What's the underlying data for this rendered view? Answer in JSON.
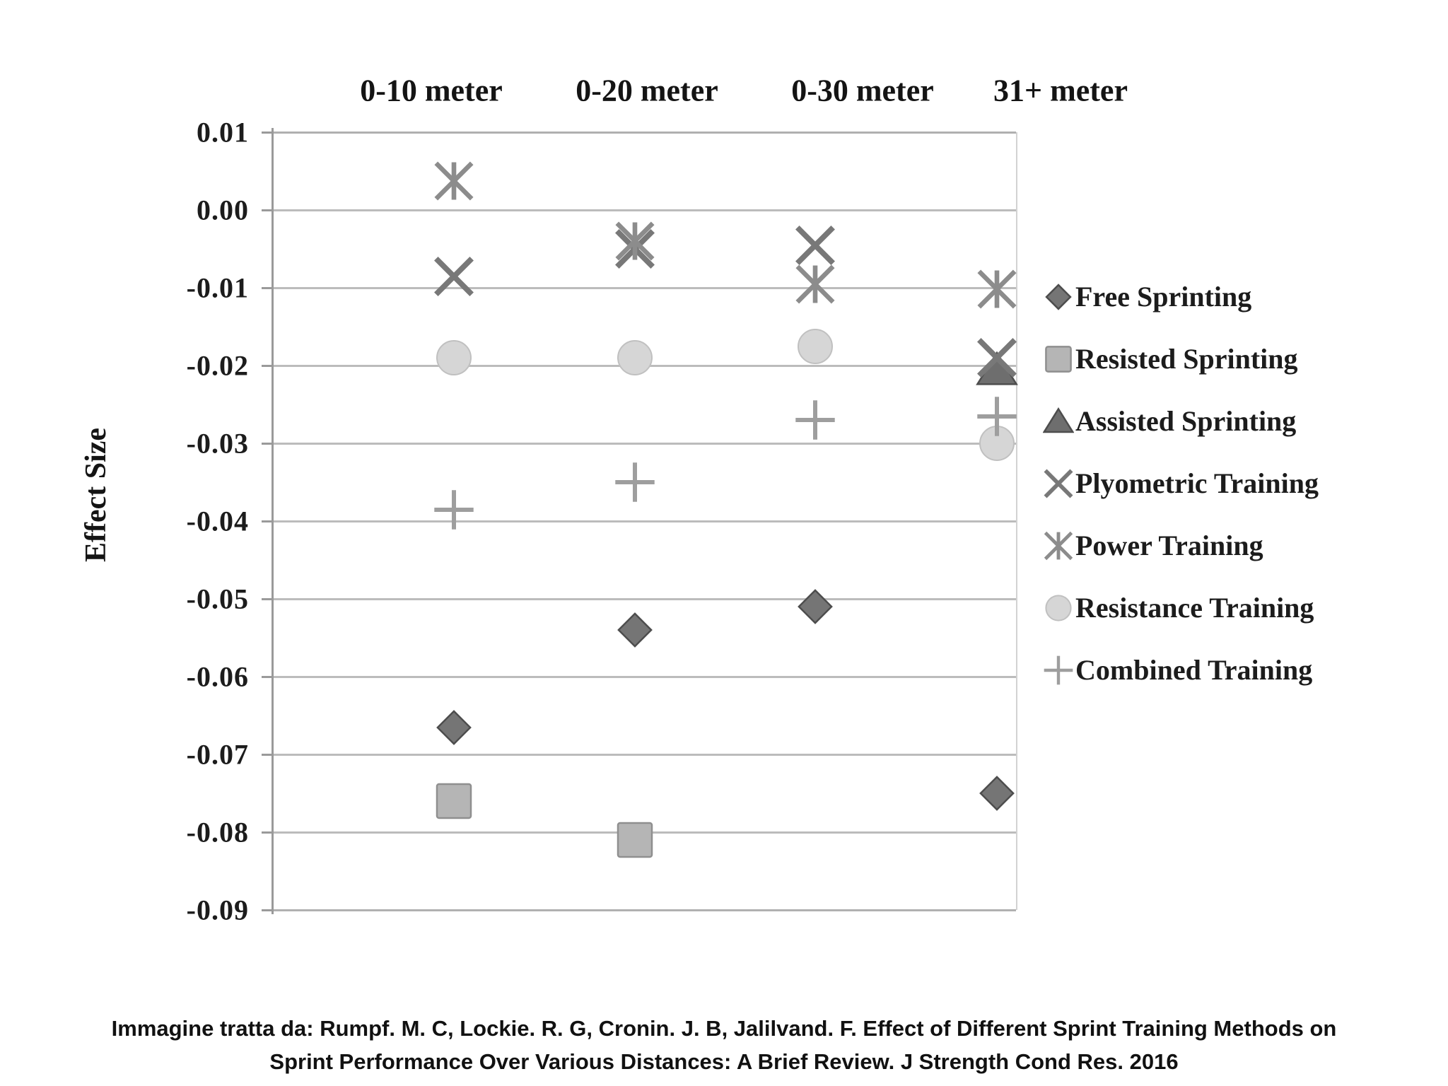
{
  "chart_data": {
    "type": "scatter",
    "title": "",
    "xlabel": "",
    "ylabel": "Effect Size",
    "categories": [
      "0-10 meter",
      "0-20 meter",
      "0-30 meter",
      "31+ meter"
    ],
    "series": [
      {
        "name": "Free Sprinting",
        "marker": "diamond",
        "color": "#757575",
        "border": "#4d4d4d",
        "values": [
          -0.0665,
          -0.054,
          -0.051,
          -0.075
        ]
      },
      {
        "name": "Resisted Sprinting",
        "marker": "square",
        "color": "#b5b5b5",
        "border": "#8f8f8f",
        "values": [
          -0.076,
          -0.081,
          null,
          null
        ]
      },
      {
        "name": "Assisted Sprinting",
        "marker": "triangle",
        "color": "#6e6e6e",
        "border": "#4d4d4d",
        "values": [
          null,
          null,
          null,
          -0.0205
        ]
      },
      {
        "name": "Plyometric Training",
        "marker": "x",
        "color": "#787878",
        "border": "#787878",
        "values": [
          -0.0085,
          -0.005,
          -0.0045,
          -0.019
        ]
      },
      {
        "name": "Power Training",
        "marker": "asterisk",
        "color": "#8c8c8c",
        "border": "#8c8c8c",
        "values": [
          0.0037,
          -0.004,
          -0.0095,
          -0.0102
        ]
      },
      {
        "name": "Resistance Training",
        "marker": "circle",
        "color": "#d6d6d6",
        "border": "#c0c0c0",
        "values": [
          -0.019,
          -0.019,
          -0.0175,
          -0.03
        ]
      },
      {
        "name": "Combined Training",
        "marker": "plus",
        "color": "#9e9e9e",
        "border": "#9e9e9e",
        "values": [
          -0.0385,
          -0.035,
          -0.027,
          -0.0265
        ]
      }
    ],
    "ylim": [
      -0.09,
      0.01
    ],
    "ytick_step": 0.01,
    "yticks": [
      "0.01",
      "0.00",
      "-0.01",
      "-0.02",
      "-0.03",
      "-0.04",
      "-0.05",
      "-0.06",
      "-0.07",
      "-0.08",
      "-0.09"
    ],
    "grid": true,
    "legend_position": "right"
  },
  "caption": "Immagine tratta da: Rumpf. M. C, Lockie. R. G, Cronin. J. B, Jalilvand. F. Effect of Different Sprint Training Methods on Sprint Performance Over Various Distances: A Brief Review. J Strength Cond Res. 2016"
}
